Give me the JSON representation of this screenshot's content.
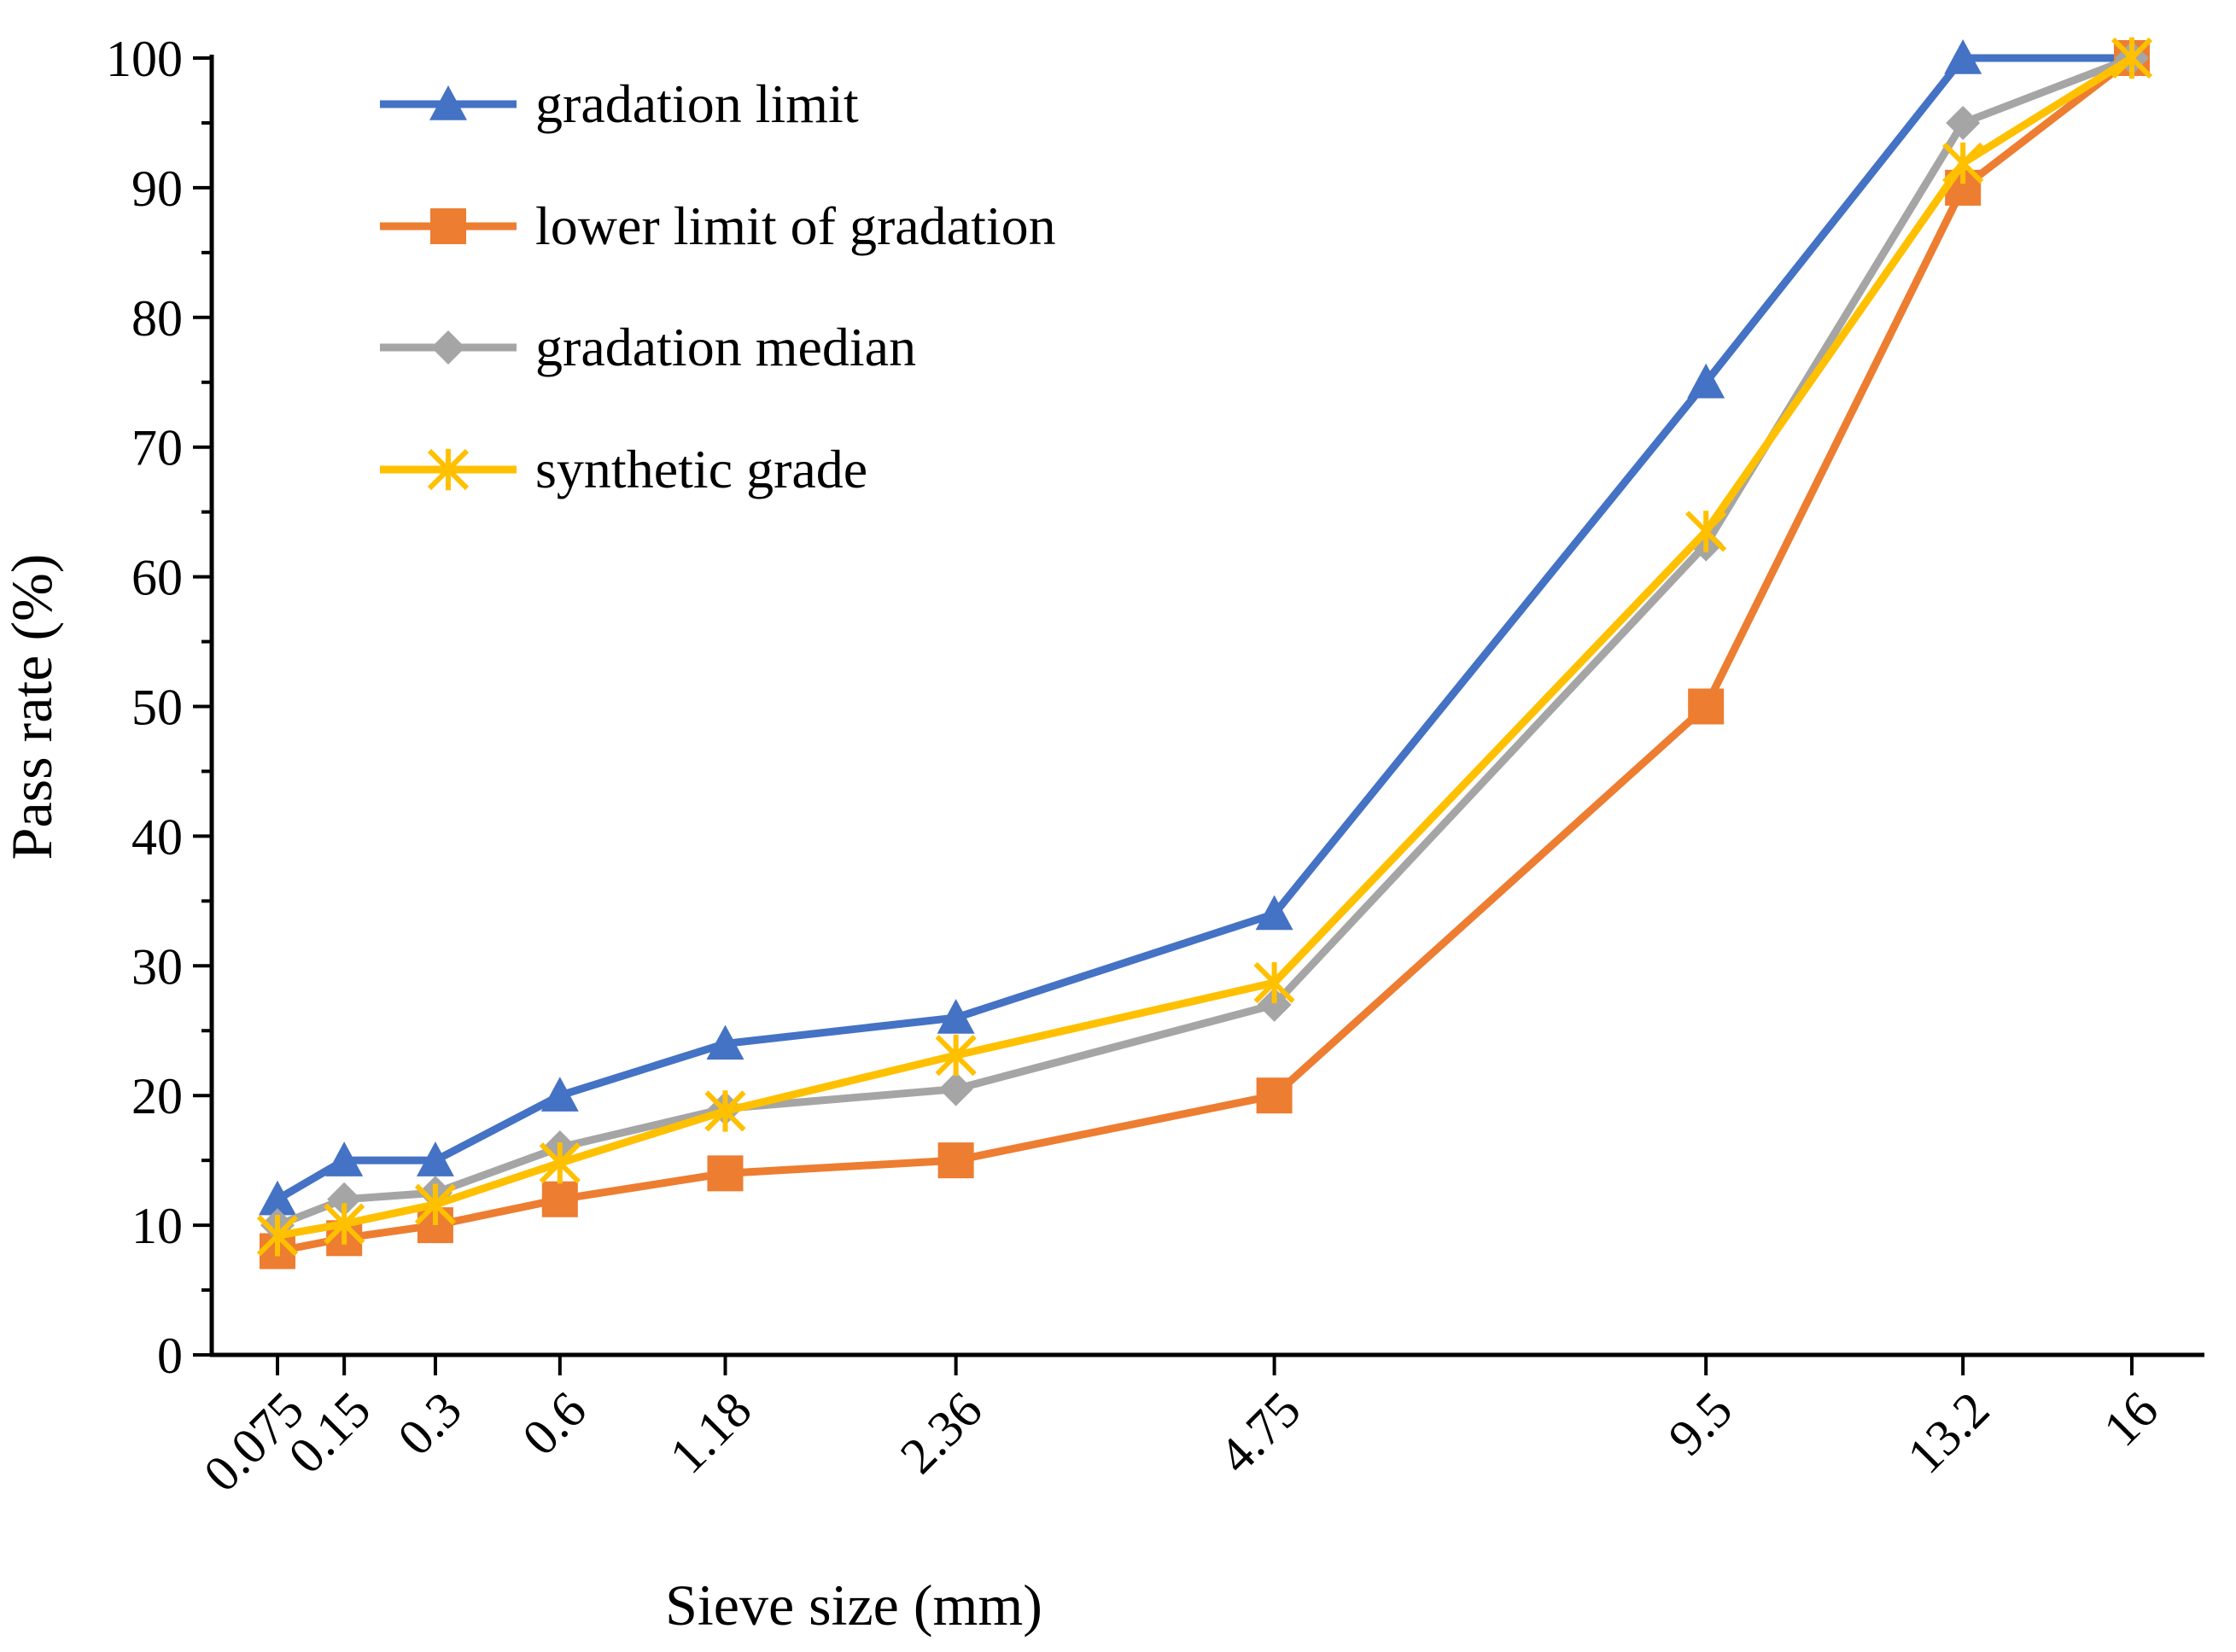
{
  "chart_data": {
    "type": "line",
    "title": "",
    "xlabel": "Sieve size (mm)",
    "ylabel": "Pass rate (%)",
    "x_scale": "power-0.45",
    "categories": [
      "0.075",
      "0.15",
      "0.3",
      "0.6",
      "1.18",
      "2.36",
      "4.75",
      "9.5",
      "13.2",
      "16"
    ],
    "x": [
      0.075,
      0.15,
      0.3,
      0.6,
      1.18,
      2.36,
      4.75,
      9.5,
      13.2,
      16
    ],
    "ylim": [
      0,
      100
    ],
    "yticks": [
      0,
      10,
      20,
      30,
      40,
      50,
      60,
      70,
      80,
      90,
      100
    ],
    "legend_position": "top-left",
    "series": [
      {
        "name": "gradation limit",
        "color": "#4472C4",
        "marker": "triangle",
        "values": [
          12,
          15,
          15,
          20,
          24,
          26,
          34,
          75,
          100,
          100
        ]
      },
      {
        "name": "lower limit of gradation",
        "color": "#ED7D31",
        "marker": "square",
        "values": [
          8,
          9,
          10,
          12,
          14,
          15,
          20,
          50,
          90,
          100
        ]
      },
      {
        "name": "gradation median",
        "color": "#A5A5A5",
        "marker": "diamond",
        "values": [
          10,
          12,
          12.5,
          16,
          19,
          20.5,
          27,
          62.5,
          95,
          100
        ]
      },
      {
        "name": "synthetic grade",
        "color": "#FFC000",
        "marker": "star",
        "values": [
          9.2,
          10.1,
          11.6,
          14.8,
          18.8,
          23.1,
          28.7,
          63.5,
          91.9,
          100
        ]
      }
    ]
  }
}
